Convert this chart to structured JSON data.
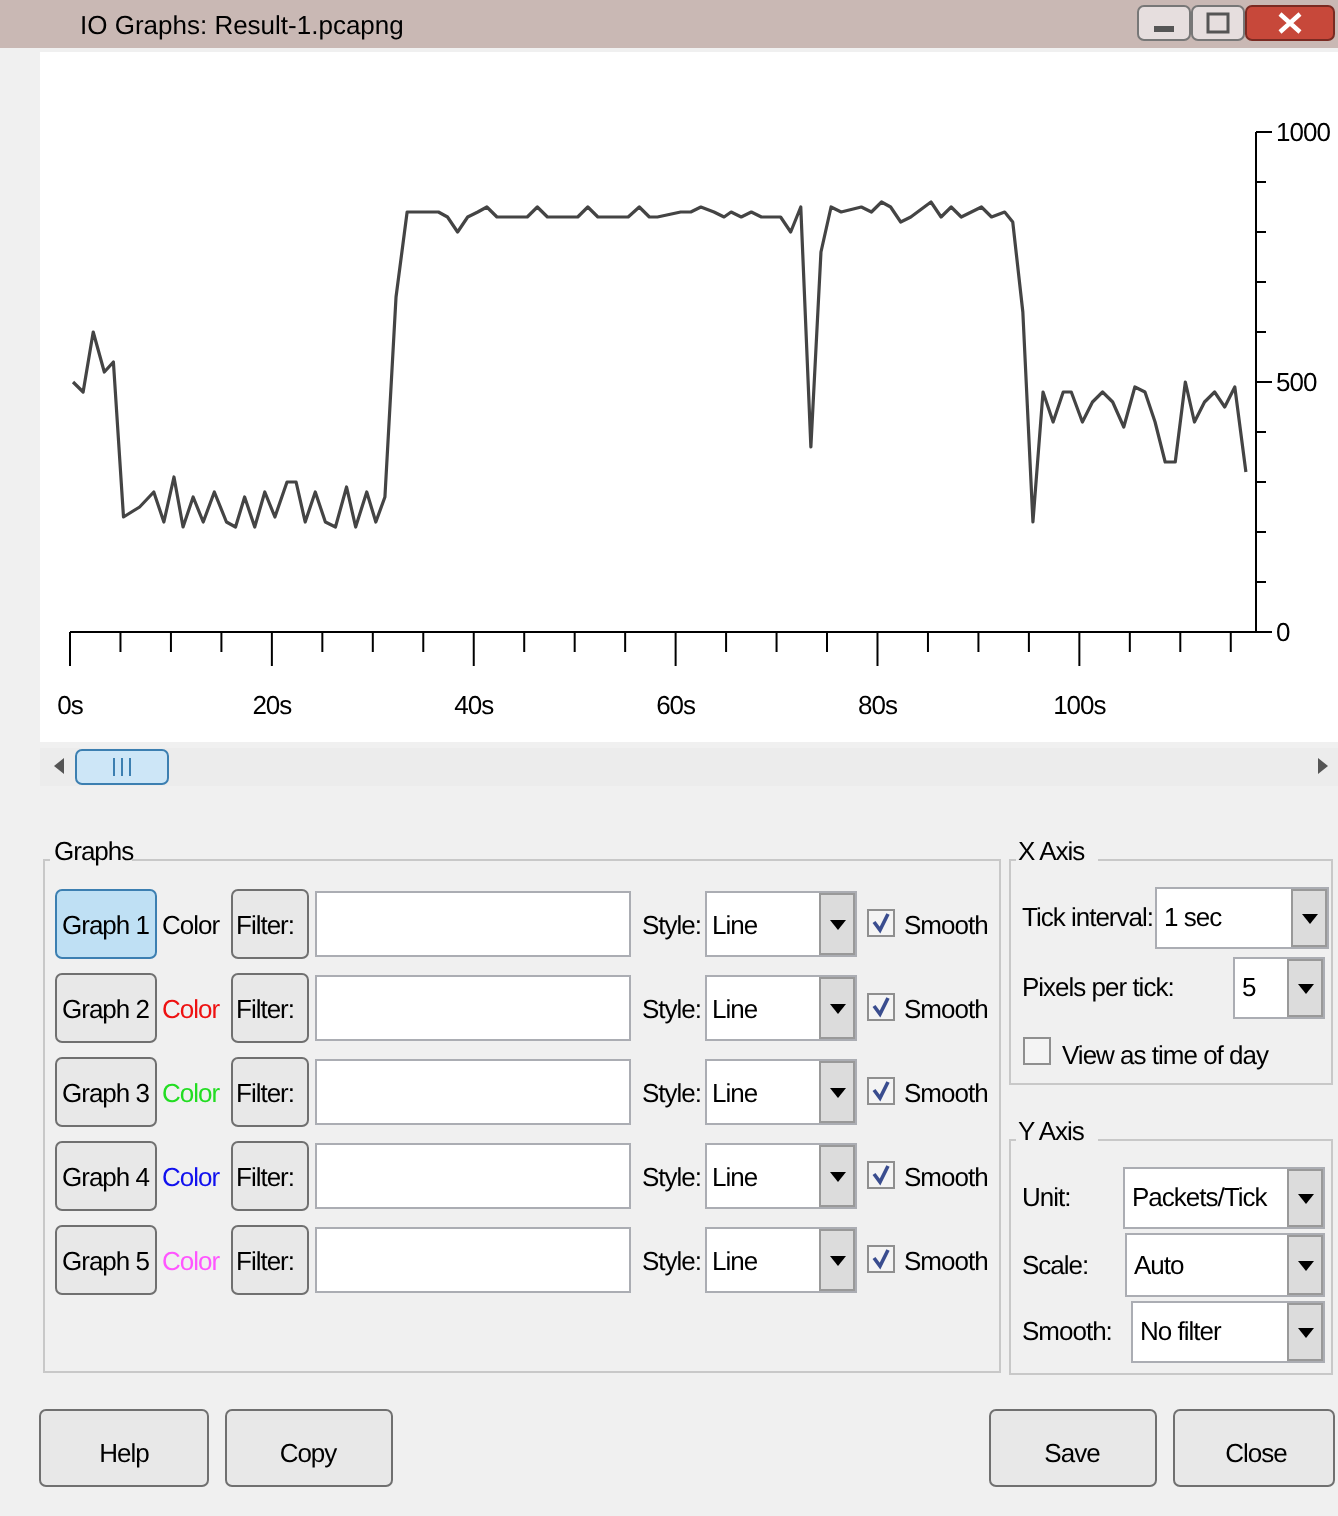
{
  "chart_data": {
    "type": "line",
    "title": "IO Graphs: Result-1.pcapng",
    "x": [
      0.3,
      1.3,
      2.3,
      3.4,
      4.3,
      5.3,
      6.9,
      8.3,
      9.3,
      10.3,
      11.2,
      12.2,
      13.2,
      14.3,
      15.5,
      16.4,
      17.3,
      18.3,
      19.3,
      20.3,
      21.5,
      22.4,
      23.3,
      24.3,
      25.3,
      26.3,
      27.4,
      28.3,
      29.4,
      30.3,
      31.2,
      32.3,
      33.4,
      35.4,
      36.5,
      37.4,
      38.4,
      39.4,
      40.4,
      41.3,
      42.3,
      45.3,
      46.3,
      47.3,
      50.3,
      51.3,
      52.3,
      55.3,
      56.4,
      57.4,
      58.2,
      60.5,
      61.5,
      62.5,
      63.8,
      64.8,
      65.5,
      66.5,
      67.5,
      68.5,
      69.4,
      70.4,
      71.4,
      72.4,
      73.4,
      74.4,
      75.4,
      76.4,
      78.4,
      79.4,
      80.4,
      81.3,
      82.3,
      83.3,
      85.3,
      86.3,
      87.3,
      88.3,
      90.3,
      91.3,
      92.6,
      93.4,
      94.4,
      95.4,
      96.4,
      97.4,
      98.4,
      99.2,
      100.3,
      101.3,
      102.3,
      103.3,
      104.4,
      105.5,
      106.5,
      107.5,
      108.5,
      109.5,
      110.5,
      111.4,
      112.4,
      113.4,
      114.4,
      115.4,
      116.5
    ],
    "series": [
      {
        "color": "#444444",
        "values": [
          500,
          480,
          600,
          520,
          540,
          230,
          250,
          280,
          220,
          310,
          210,
          270,
          220,
          280,
          220,
          210,
          270,
          210,
          280,
          230,
          300,
          300,
          220,
          280,
          220,
          210,
          290,
          210,
          280,
          220,
          270,
          670,
          840,
          840,
          840,
          830,
          800,
          830,
          840,
          850,
          830,
          830,
          850,
          830,
          830,
          850,
          830,
          830,
          850,
          830,
          830,
          840,
          840,
          850,
          840,
          830,
          840,
          830,
          840,
          830,
          830,
          830,
          800,
          850,
          370,
          760,
          850,
          840,
          850,
          840,
          860,
          850,
          820,
          830,
          860,
          830,
          850,
          830,
          850,
          830,
          840,
          820,
          640,
          220,
          480,
          420,
          480,
          480,
          420,
          460,
          480,
          460,
          410,
          490,
          480,
          420,
          340,
          340,
          500,
          420,
          460,
          480,
          450,
          490,
          320
        ]
      }
    ],
    "xlim": [
      0,
      117.5
    ],
    "xticks": [
      {
        "value": 0,
        "label": "0s"
      },
      {
        "value": 5,
        "label": null
      },
      {
        "value": 10,
        "label": null
      },
      {
        "value": 15,
        "label": null
      },
      {
        "value": 20,
        "label": "20s"
      },
      {
        "value": 25,
        "label": null
      },
      {
        "value": 30,
        "label": null
      },
      {
        "value": 35,
        "label": null
      },
      {
        "value": 40,
        "label": "40s"
      },
      {
        "value": 45,
        "label": null
      },
      {
        "value": 50,
        "label": null
      },
      {
        "value": 55,
        "label": null
      },
      {
        "value": 60,
        "label": "60s"
      },
      {
        "value": 65,
        "label": null
      },
      {
        "value": 70,
        "label": null
      },
      {
        "value": 75,
        "label": null
      },
      {
        "value": 80,
        "label": "80s"
      },
      {
        "value": 85,
        "label": null
      },
      {
        "value": 90,
        "label": null
      },
      {
        "value": 95,
        "label": null
      },
      {
        "value": 100,
        "label": "100s"
      },
      {
        "value": 105,
        "label": null
      },
      {
        "value": 110,
        "label": null
      },
      {
        "value": 115,
        "label": null
      }
    ],
    "ylim": [
      0,
      1000
    ],
    "yticks": [
      0,
      {
        "value": 100,
        "label": null
      },
      {
        "value": 200,
        "label": null
      },
      {
        "value": 300,
        "label": null
      },
      {
        "value": 400,
        "label": null
      },
      500,
      {
        "value": 600,
        "label": null
      },
      {
        "value": 700,
        "label": null
      },
      {
        "value": 800,
        "label": null
      },
      {
        "value": 900,
        "label": null
      },
      1000
    ],
    "annotations": [
      "Graphs",
      "Graph 1",
      "Color",
      "Filter:",
      "Style:",
      "Line",
      "Smooth",
      "Graph 2",
      "Color",
      "Filter:",
      "Style:",
      "Line",
      "Smooth",
      "Graph 3",
      "Color",
      "Filter:",
      "Style:",
      "Line",
      "Smooth",
      "Graph 4",
      "Color",
      "Filter:",
      "Style:",
      "Line",
      "Smooth",
      "Graph 5",
      "Color",
      "Filter:",
      "Style:",
      "Line",
      "Smooth",
      "X Axis",
      "Tick interval:",
      "1 sec",
      "Pixels per tick:",
      "5",
      "View as time of day",
      "Y Axis",
      "Unit:",
      "Packets/Tick",
      "Scale:",
      "Auto",
      "Smooth:",
      "No filter",
      "Help",
      "Copy",
      "Save",
      "Close"
    ]
  }
}
